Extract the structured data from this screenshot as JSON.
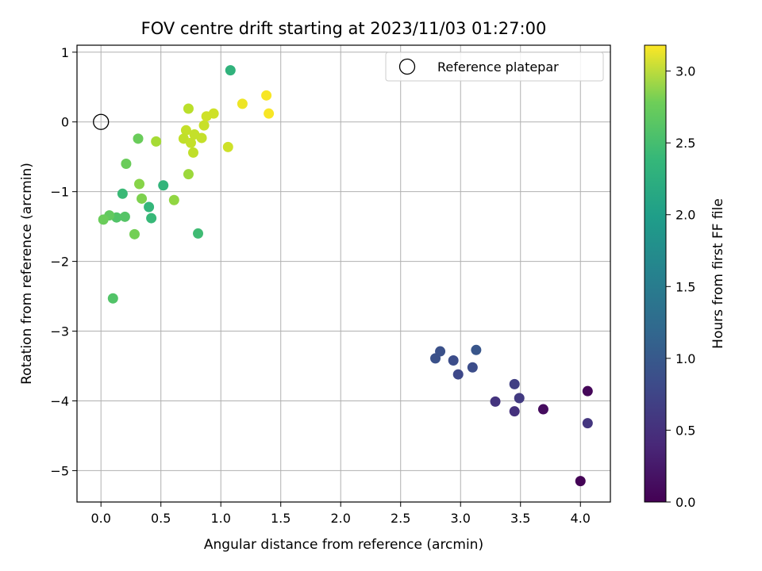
{
  "chart_data": {
    "type": "scatter",
    "title": "FOV centre drift starting at 2023/11/03 01:27:00",
    "xlabel": "Angular distance from reference (arcmin)",
    "ylabel": "Rotation from reference (arcmin)",
    "xlim": [
      -0.2,
      4.25
    ],
    "ylim": [
      -5.45,
      1.1
    ],
    "xticks": [
      0.0,
      0.5,
      1.0,
      1.5,
      2.0,
      2.5,
      3.0,
      3.5,
      4.0
    ],
    "xtick_labels": [
      "0.0",
      "0.5",
      "1.0",
      "1.5",
      "2.0",
      "2.5",
      "3.0",
      "3.5",
      "4.0"
    ],
    "yticks": [
      1,
      0,
      -1,
      -2,
      -3,
      -4,
      -5
    ],
    "ytick_labels": [
      "1",
      "0",
      "−1",
      "−2",
      "−3",
      "−4",
      "−5"
    ],
    "grid": true,
    "legend": {
      "position": "top-right",
      "entries": [
        {
          "label": "Reference platepar",
          "marker": "open-circle"
        }
      ]
    },
    "reference_point": {
      "x": 0.0,
      "y": 0.0
    },
    "colorbar": {
      "label": "Hours from first FF file",
      "colormap": "viridis",
      "range": [
        0.0,
        3.18
      ],
      "ticks": [
        0.0,
        0.5,
        1.0,
        1.5,
        2.0,
        2.5,
        3.0
      ],
      "tick_labels": [
        "0.0",
        "0.5",
        "1.0",
        "1.5",
        "2.0",
        "2.5",
        "3.0"
      ]
    },
    "points": [
      {
        "x": 4.0,
        "y": -5.15,
        "c": 0.02
      },
      {
        "x": 4.06,
        "y": -3.86,
        "c": 0.05
      },
      {
        "x": 3.69,
        "y": -4.12,
        "c": 0.1
      },
      {
        "x": 4.06,
        "y": -4.32,
        "c": 0.5
      },
      {
        "x": 3.45,
        "y": -4.15,
        "c": 0.45
      },
      {
        "x": 3.29,
        "y": -4.01,
        "c": 0.48
      },
      {
        "x": 3.49,
        "y": -3.96,
        "c": 0.55
      },
      {
        "x": 3.45,
        "y": -3.76,
        "c": 0.6
      },
      {
        "x": 2.98,
        "y": -3.62,
        "c": 0.7
      },
      {
        "x": 3.1,
        "y": -3.52,
        "c": 0.75
      },
      {
        "x": 2.94,
        "y": -3.42,
        "c": 0.75
      },
      {
        "x": 2.79,
        "y": -3.39,
        "c": 0.8
      },
      {
        "x": 2.83,
        "y": -3.29,
        "c": 0.8
      },
      {
        "x": 3.13,
        "y": -3.27,
        "c": 0.85
      },
      {
        "x": 1.08,
        "y": 0.74,
        "c": 2.05
      },
      {
        "x": 0.52,
        "y": -0.91,
        "c": 2.08
      },
      {
        "x": 0.4,
        "y": -1.22,
        "c": 2.1
      },
      {
        "x": 0.42,
        "y": -1.38,
        "c": 2.13
      },
      {
        "x": 0.18,
        "y": -1.03,
        "c": 2.15
      },
      {
        "x": 0.81,
        "y": -1.6,
        "c": 2.18
      },
      {
        "x": 0.1,
        "y": -2.53,
        "c": 2.3
      },
      {
        "x": 0.13,
        "y": -1.37,
        "c": 2.3
      },
      {
        "x": 0.2,
        "y": -1.36,
        "c": 2.32
      },
      {
        "x": 0.07,
        "y": -1.34,
        "c": 2.4
      },
      {
        "x": 0.02,
        "y": -1.4,
        "c": 2.45
      },
      {
        "x": 0.21,
        "y": -0.6,
        "c": 2.45
      },
      {
        "x": 0.31,
        "y": -0.24,
        "c": 2.45
      },
      {
        "x": 0.28,
        "y": -1.61,
        "c": 2.5
      },
      {
        "x": 0.34,
        "y": -1.1,
        "c": 2.55
      },
      {
        "x": 0.32,
        "y": -0.89,
        "c": 2.6
      },
      {
        "x": 0.61,
        "y": -1.12,
        "c": 2.65
      },
      {
        "x": 0.73,
        "y": -0.75,
        "c": 2.7
      },
      {
        "x": 0.46,
        "y": -0.28,
        "c": 2.75
      },
      {
        "x": 0.73,
        "y": 0.19,
        "c": 2.85
      },
      {
        "x": 0.71,
        "y": -0.12,
        "c": 2.9
      },
      {
        "x": 0.69,
        "y": -0.24,
        "c": 2.88
      },
      {
        "x": 0.75,
        "y": -0.3,
        "c": 2.9
      },
      {
        "x": 0.78,
        "y": -0.18,
        "c": 2.9
      },
      {
        "x": 0.77,
        "y": -0.44,
        "c": 2.88
      },
      {
        "x": 0.84,
        "y": -0.23,
        "c": 2.9
      },
      {
        "x": 0.86,
        "y": -0.05,
        "c": 2.92
      },
      {
        "x": 0.88,
        "y": 0.08,
        "c": 2.95
      },
      {
        "x": 0.94,
        "y": 0.12,
        "c": 2.95
      },
      {
        "x": 1.06,
        "y": -0.36,
        "c": 2.95
      },
      {
        "x": 1.18,
        "y": 0.26,
        "c": 3.1
      },
      {
        "x": 1.38,
        "y": 0.38,
        "c": 3.15
      },
      {
        "x": 1.4,
        "y": 0.12,
        "c": 3.15
      }
    ]
  }
}
